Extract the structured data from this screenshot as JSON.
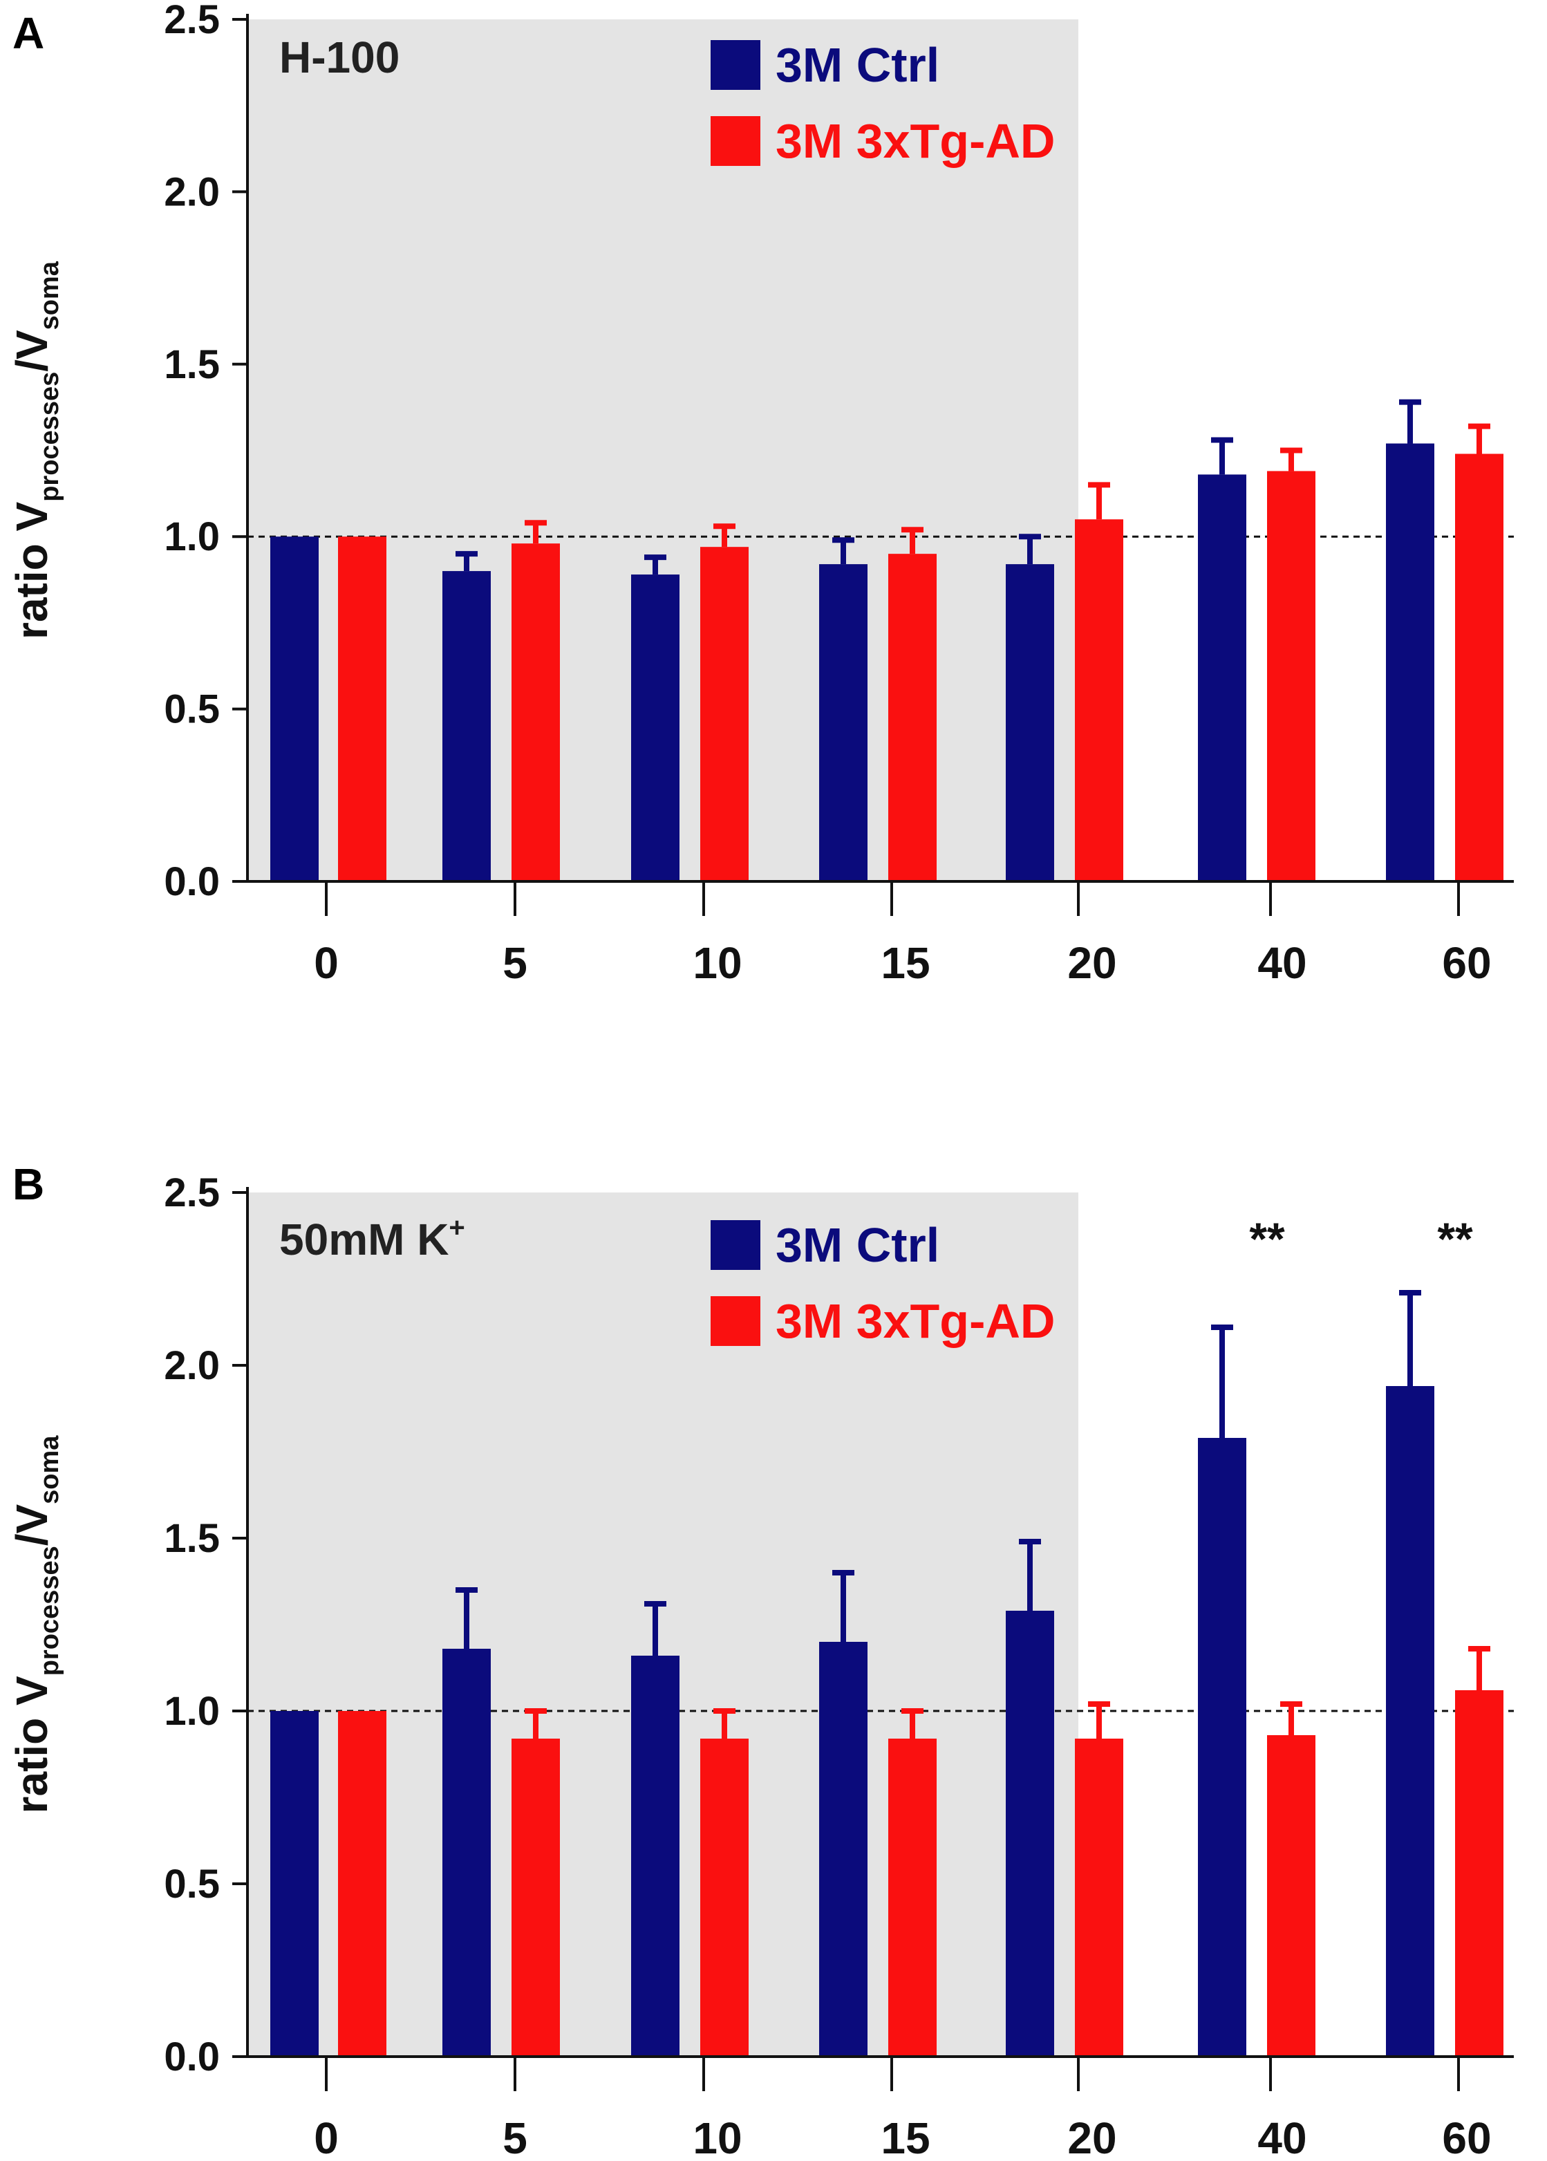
{
  "figure": {
    "panels": [
      "A",
      "B"
    ]
  },
  "colors": {
    "ctrl": "#0b0b7c",
    "tg": "#fa1010",
    "shade": "#e4e4e4",
    "axis": "#111111"
  },
  "chart_data": [
    {
      "type": "bar",
      "panel": "A",
      "title": "H-100",
      "xlabel": "",
      "ylabel_main": "ratio V",
      "ylabel_sub1": "processes",
      "ylabel_mid": "/V",
      "ylabel_sub2": "soma",
      "categories": [
        "0",
        "5",
        "10",
        "15",
        "20",
        "40",
        "60"
      ],
      "ylim": [
        0,
        2.5
      ],
      "yticks": [
        "0.0",
        "0.5",
        "1.0",
        "1.5",
        "2.0",
        "2.5"
      ],
      "reference_line": 1.0,
      "shaded_through_category": "20",
      "legend_position": "top-center",
      "series": [
        {
          "name": "3M Ctrl",
          "color": "#0b0b7c",
          "values": [
            1.0,
            0.9,
            0.89,
            0.92,
            0.92,
            1.18,
            1.27
          ],
          "errors": [
            0.0,
            0.05,
            0.05,
            0.07,
            0.08,
            0.1,
            0.12
          ]
        },
        {
          "name": "3M 3xTg-AD",
          "color": "#fa1010",
          "values": [
            1.0,
            0.98,
            0.97,
            0.95,
            1.05,
            1.19,
            1.24
          ],
          "errors": [
            0.0,
            0.06,
            0.06,
            0.07,
            0.1,
            0.06,
            0.08
          ]
        }
      ],
      "annotations": []
    },
    {
      "type": "bar",
      "panel": "B",
      "title": "50mM K",
      "title_sup": "+",
      "xlabel": "",
      "ylabel_main": "ratio V",
      "ylabel_sub1": "processes",
      "ylabel_mid": "/V",
      "ylabel_sub2": "soma",
      "categories": [
        "0",
        "5",
        "10",
        "15",
        "20",
        "40",
        "60"
      ],
      "ylim": [
        0,
        2.5
      ],
      "yticks": [
        "0.0",
        "0.5",
        "1.0",
        "1.5",
        "2.0",
        "2.5"
      ],
      "reference_line": 1.0,
      "shaded_through_category": "20",
      "legend_position": "top-center",
      "series": [
        {
          "name": "3M Ctrl",
          "color": "#0b0b7c",
          "values": [
            1.0,
            1.18,
            1.16,
            1.2,
            1.29,
            1.79,
            1.94
          ],
          "errors": [
            0.0,
            0.17,
            0.15,
            0.2,
            0.2,
            0.32,
            0.27
          ]
        },
        {
          "name": "3M 3xTg-AD",
          "color": "#fa1010",
          "values": [
            1.0,
            0.92,
            0.92,
            0.92,
            0.92,
            0.93,
            1.06
          ],
          "errors": [
            0.0,
            0.08,
            0.08,
            0.08,
            0.1,
            0.09,
            0.12
          ]
        }
      ],
      "annotations": [
        {
          "category": "40",
          "text": "**"
        },
        {
          "category": "60",
          "text": "**"
        }
      ]
    }
  ]
}
